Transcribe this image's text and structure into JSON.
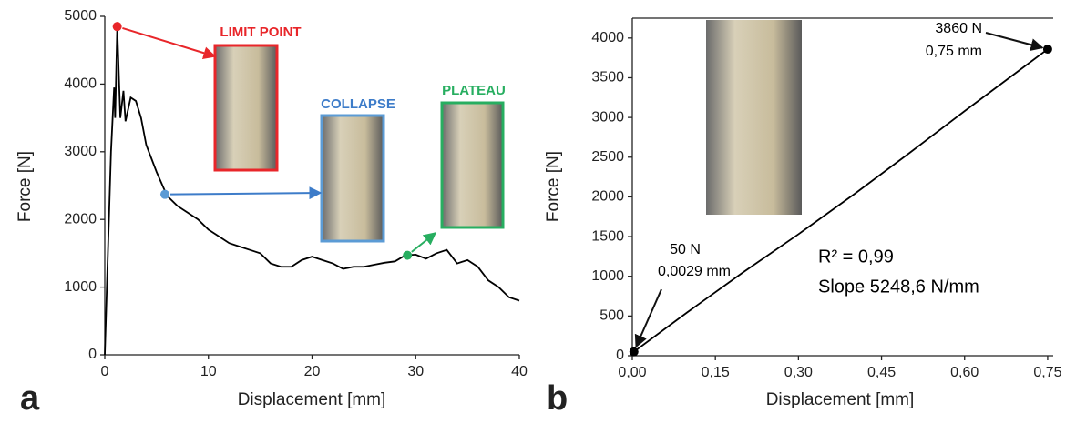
{
  "chart_data": [
    {
      "type": "line",
      "panel": "a",
      "x_label": "Displacement [mm]",
      "y_label": "Force [N]",
      "x": [
        0,
        0.3,
        0.6,
        0.9,
        1.0,
        1.2,
        1.5,
        1.8,
        2.0,
        2.5,
        3,
        3.5,
        4,
        5,
        6,
        7,
        8,
        9,
        10,
        11,
        12,
        13,
        14,
        15,
        16,
        17,
        18,
        19,
        20,
        21,
        22,
        23,
        24,
        25,
        26,
        27,
        28,
        29,
        30,
        31,
        32,
        33,
        34,
        35,
        36,
        37,
        38,
        39,
        40
      ],
      "series": [
        {
          "color": "#000000",
          "values": [
            0,
            1500,
            3000,
            3950,
            3500,
            4850,
            3500,
            3900,
            3450,
            3800,
            3750,
            3500,
            3100,
            2700,
            2350,
            2200,
            2100,
            2000,
            1850,
            1750,
            1650,
            1600,
            1550,
            1500,
            1350,
            1300,
            1300,
            1400,
            1450,
            1400,
            1350,
            1270,
            1300,
            1300,
            1330,
            1360,
            1380,
            1470,
            1480,
            1420,
            1500,
            1550,
            1350,
            1400,
            1300,
            1100,
            1000,
            850,
            800
          ]
        }
      ],
      "markers": [
        {
          "x": 1.2,
          "y": 4850,
          "color": "#e8262a"
        },
        {
          "x": 5.8,
          "y": 2370,
          "color": "#5b9bd5"
        },
        {
          "x": 29.2,
          "y": 1470,
          "color": "#27ae60"
        }
      ],
      "annotations": [
        {
          "text": "LIMIT POINT",
          "color": "#e8262a"
        },
        {
          "text": "COLLAPSE",
          "color": "#3d7cc9"
        },
        {
          "text": "PLATEAU",
          "color": "#27ae60"
        }
      ],
      "xlim": [
        0,
        40
      ],
      "ylim": [
        0,
        5000
      ],
      "xticks": [
        0,
        10,
        20,
        30,
        40
      ],
      "yticks": [
        0,
        1000,
        2000,
        3000,
        4000,
        5000
      ]
    },
    {
      "type": "line",
      "panel": "b",
      "x_label": "Displacement [mm]",
      "y_label": "Force [N]",
      "x": [
        0,
        0.0029,
        0.1,
        0.2,
        0.3,
        0.4,
        0.5,
        0.6,
        0.7,
        0.75
      ],
      "series": [
        {
          "color": "#000000",
          "values": [
            0,
            50,
            550,
            1050,
            1530,
            2030,
            2550,
            3080,
            3600,
            3860
          ]
        }
      ],
      "markers": [
        {
          "x": 0.0029,
          "y": 50,
          "color": "#000000"
        },
        {
          "x": 0.75,
          "y": 3860,
          "color": "#000000"
        }
      ],
      "annotations": [
        {
          "text": "50 N",
          "color": "#000000"
        },
        {
          "text": "0,0029 mm",
          "color": "#000000"
        },
        {
          "text": "3860 N",
          "color": "#000000"
        },
        {
          "text": "0,75 mm",
          "color": "#000000"
        },
        {
          "text": "R² = 0,99",
          "color": "#000000"
        },
        {
          "text": "Slope 5248,6 N/mm",
          "color": "#000000"
        }
      ],
      "xlim": [
        0,
        0.76
      ],
      "ylim": [
        0,
        4250
      ],
      "xticks": [
        {
          "value": 0,
          "label": "0,00"
        },
        {
          "value": 0.15,
          "label": "0,15"
        },
        {
          "value": 0.3,
          "label": "0,30"
        },
        {
          "value": 0.45,
          "label": "0,45"
        },
        {
          "value": 0.6,
          "label": "0,60"
        },
        {
          "value": 0.75,
          "label": "0,75"
        }
      ],
      "yticks": [
        0,
        500,
        1000,
        1500,
        2000,
        2500,
        3000,
        3500,
        4000
      ]
    }
  ]
}
